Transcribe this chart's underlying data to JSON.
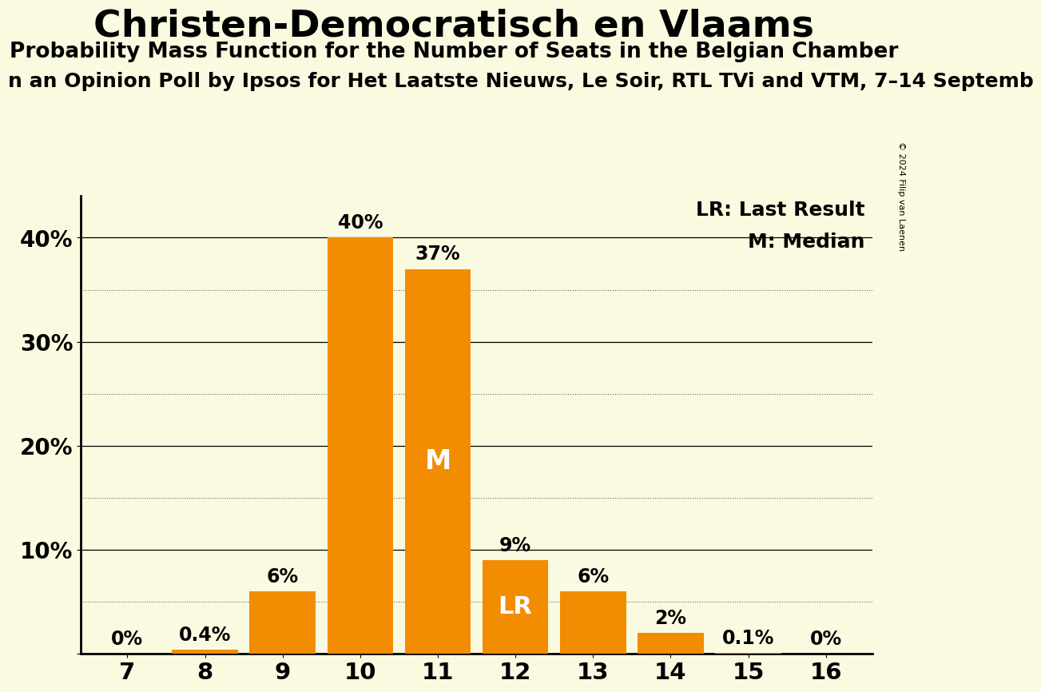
{
  "title": "Christen-Democratisch en Vlaams",
  "subtitle": "Probability Mass Function for the Number of Seats in the Belgian Chamber",
  "subtitle2": "n an Opinion Poll by Ipsos for Het Laatste Nieuws, Le Soir, RTL TVi and VTM, 7–14 Septemb",
  "watermark": "© 2024 Filip van Laenen",
  "categories": [
    7,
    8,
    9,
    10,
    11,
    12,
    13,
    14,
    15,
    16
  ],
  "values": [
    0.0,
    0.4,
    6.0,
    40.0,
    37.0,
    9.0,
    6.0,
    2.0,
    0.1,
    0.0
  ],
  "labels": [
    "0%",
    "0.4%",
    "6%",
    "40%",
    "37%",
    "9%",
    "6%",
    "2%",
    "0.1%",
    "0%"
  ],
  "bar_color": "#F28C00",
  "median_seat": 11,
  "lr_seat": 12,
  "background_color": "#FAFAE0",
  "ylim": [
    0,
    44
  ],
  "yticks": [
    0,
    10,
    20,
    30,
    40
  ],
  "major_gridlines": [
    10,
    20,
    30,
    40
  ],
  "minor_gridlines": [
    5,
    15,
    25,
    35
  ],
  "legend_lr": "LR: Last Result",
  "legend_m": "M: Median"
}
